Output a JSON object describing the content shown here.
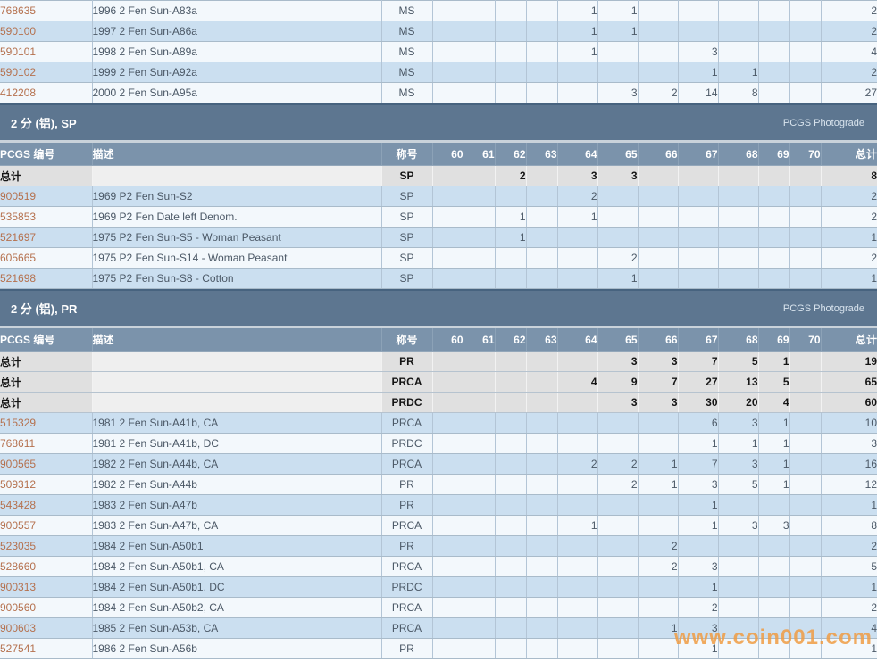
{
  "watermark": "www.coin001.com",
  "photograde_label": "PCGS Photograde",
  "total_label": "总计",
  "columns": {
    "id": "PCGS 编号",
    "desc": "描述",
    "desig": "称号",
    "grades": [
      "60",
      "61",
      "62",
      "63",
      "64",
      "65",
      "66",
      "67",
      "68",
      "69",
      "70"
    ],
    "total": "总计"
  },
  "colors": {
    "band_bg": "#5d7690",
    "header_bg": "#7b93ab",
    "row_blue": "#cbdff0",
    "row_light": "#f3f8fc",
    "total_row_bg": "#e0e0e0",
    "link": "#b5714e",
    "watermark": "#f09d44"
  },
  "sections": [
    {
      "title": null,
      "stripe_offset": 0,
      "totals": [],
      "rows": [
        {
          "id": "768635",
          "desc": "1996 2 Fen Sun-A83a",
          "desig": "MS",
          "grades": [
            "",
            "",
            "",
            "",
            "1",
            "1",
            "",
            "",
            "",
            "",
            ""
          ],
          "total": "2"
        },
        {
          "id": "590100",
          "desc": "1997 2 Fen Sun-A86a",
          "desig": "MS",
          "grades": [
            "",
            "",
            "",
            "",
            "1",
            "1",
            "",
            "",
            "",
            "",
            ""
          ],
          "total": "2"
        },
        {
          "id": "590101",
          "desc": "1998 2 Fen Sun-A89a",
          "desig": "MS",
          "grades": [
            "",
            "",
            "",
            "",
            "1",
            "",
            "",
            "3",
            "",
            "",
            ""
          ],
          "total": "4"
        },
        {
          "id": "590102",
          "desc": "1999 2 Fen Sun-A92a",
          "desig": "MS",
          "grades": [
            "",
            "",
            "",
            "",
            "",
            "",
            "",
            "1",
            "1",
            "",
            ""
          ],
          "total": "2"
        },
        {
          "id": "412208",
          "desc": "2000 2 Fen Sun-A95a",
          "desig": "MS",
          "grades": [
            "",
            "",
            "",
            "",
            "",
            "3",
            "2",
            "14",
            "8",
            "",
            ""
          ],
          "total": "27"
        }
      ]
    },
    {
      "title": "2 分 (铝), SP",
      "stripe_offset": 1,
      "totals": [
        {
          "desig": "SP",
          "grades": [
            "",
            "",
            "2",
            "",
            "3",
            "3",
            "",
            "",
            "",
            "",
            ""
          ],
          "total": "8"
        }
      ],
      "rows": [
        {
          "id": "900519",
          "desc": "1969 P2 Fen Sun-S2",
          "desig": "SP",
          "grades": [
            "",
            "",
            "",
            "",
            "2",
            "",
            "",
            "",
            "",
            "",
            ""
          ],
          "total": "2"
        },
        {
          "id": "535853",
          "desc": "1969 P2 Fen Date left Denom.",
          "desig": "SP",
          "grades": [
            "",
            "",
            "1",
            "",
            "1",
            "",
            "",
            "",
            "",
            "",
            ""
          ],
          "total": "2"
        },
        {
          "id": "521697",
          "desc": "1975 P2 Fen Sun-S5 - Woman Peasant",
          "desig": "SP",
          "grades": [
            "",
            "",
            "1",
            "",
            "",
            "",
            "",
            "",
            "",
            "",
            ""
          ],
          "total": "1"
        },
        {
          "id": "605665",
          "desc": "1975 P2 Fen Sun-S14 - Woman Peasant",
          "desig": "SP",
          "grades": [
            "",
            "",
            "",
            "",
            "",
            "2",
            "",
            "",
            "",
            "",
            ""
          ],
          "total": "2"
        },
        {
          "id": "521698",
          "desc": "1975 P2 Fen Sun-S8 - Cotton",
          "desig": "SP",
          "grades": [
            "",
            "",
            "",
            "",
            "",
            "1",
            "",
            "",
            "",
            "",
            ""
          ],
          "total": "1"
        }
      ]
    },
    {
      "title": "2 分 (铝), PR",
      "stripe_offset": 1,
      "totals": [
        {
          "desig": "PR",
          "grades": [
            "",
            "",
            "",
            "",
            "",
            "3",
            "3",
            "7",
            "5",
            "1",
            ""
          ],
          "total": "19"
        },
        {
          "desig": "PRCA",
          "grades": [
            "",
            "",
            "",
            "",
            "4",
            "9",
            "7",
            "27",
            "13",
            "5",
            ""
          ],
          "total": "65"
        },
        {
          "desig": "PRDC",
          "grades": [
            "",
            "",
            "",
            "",
            "",
            "3",
            "3",
            "30",
            "20",
            "4",
            ""
          ],
          "total": "60"
        }
      ],
      "rows": [
        {
          "id": "515329",
          "desc": "1981 2 Fen Sun-A41b, CA",
          "desig": "PRCA",
          "grades": [
            "",
            "",
            "",
            "",
            "",
            "",
            "",
            "6",
            "3",
            "1",
            ""
          ],
          "total": "10"
        },
        {
          "id": "768611",
          "desc": "1981 2 Fen Sun-A41b, DC",
          "desig": "PRDC",
          "grades": [
            "",
            "",
            "",
            "",
            "",
            "",
            "",
            "1",
            "1",
            "1",
            ""
          ],
          "total": "3"
        },
        {
          "id": "900565",
          "desc": "1982 2 Fen Sun-A44b, CA",
          "desig": "PRCA",
          "grades": [
            "",
            "",
            "",
            "",
            "2",
            "2",
            "1",
            "7",
            "3",
            "1",
            ""
          ],
          "total": "16"
        },
        {
          "id": "509312",
          "desc": "1982 2 Fen Sun-A44b",
          "desig": "PR",
          "grades": [
            "",
            "",
            "",
            "",
            "",
            "2",
            "1",
            "3",
            "5",
            "1",
            ""
          ],
          "total": "12"
        },
        {
          "id": "543428",
          "desc": "1983 2 Fen Sun-A47b",
          "desig": "PR",
          "grades": [
            "",
            "",
            "",
            "",
            "",
            "",
            "",
            "1",
            "",
            "",
            ""
          ],
          "total": "1"
        },
        {
          "id": "900557",
          "desc": "1983 2 Fen Sun-A47b, CA",
          "desig": "PRCA",
          "grades": [
            "",
            "",
            "",
            "",
            "1",
            "",
            "",
            "1",
            "3",
            "3",
            ""
          ],
          "total": "8"
        },
        {
          "id": "523035",
          "desc": "1984 2 Fen Sun-A50b1",
          "desig": "PR",
          "grades": [
            "",
            "",
            "",
            "",
            "",
            "",
            "2",
            "",
            "",
            "",
            ""
          ],
          "total": "2"
        },
        {
          "id": "528660",
          "desc": "1984 2 Fen Sun-A50b1, CA",
          "desig": "PRCA",
          "grades": [
            "",
            "",
            "",
            "",
            "",
            "",
            "2",
            "3",
            "",
            "",
            ""
          ],
          "total": "5"
        },
        {
          "id": "900313",
          "desc": "1984 2 Fen Sun-A50b1, DC",
          "desig": "PRDC",
          "grades": [
            "",
            "",
            "",
            "",
            "",
            "",
            "",
            "1",
            "",
            "",
            ""
          ],
          "total": "1"
        },
        {
          "id": "900560",
          "desc": "1984 2 Fen Sun-A50b2, CA",
          "desig": "PRCA",
          "grades": [
            "",
            "",
            "",
            "",
            "",
            "",
            "",
            "2",
            "",
            "",
            ""
          ],
          "total": "2"
        },
        {
          "id": "900603",
          "desc": "1985 2 Fen Sun-A53b, CA",
          "desig": "PRCA",
          "grades": [
            "",
            "",
            "",
            "",
            "",
            "",
            "1",
            "3",
            "",
            "",
            ""
          ],
          "total": "4"
        },
        {
          "id": "527541",
          "desc": "1986 2 Fen Sun-A56b",
          "desig": "PR",
          "grades": [
            "",
            "",
            "",
            "",
            "",
            "",
            "",
            "1",
            "",
            "",
            ""
          ],
          "total": "1"
        }
      ]
    }
  ]
}
